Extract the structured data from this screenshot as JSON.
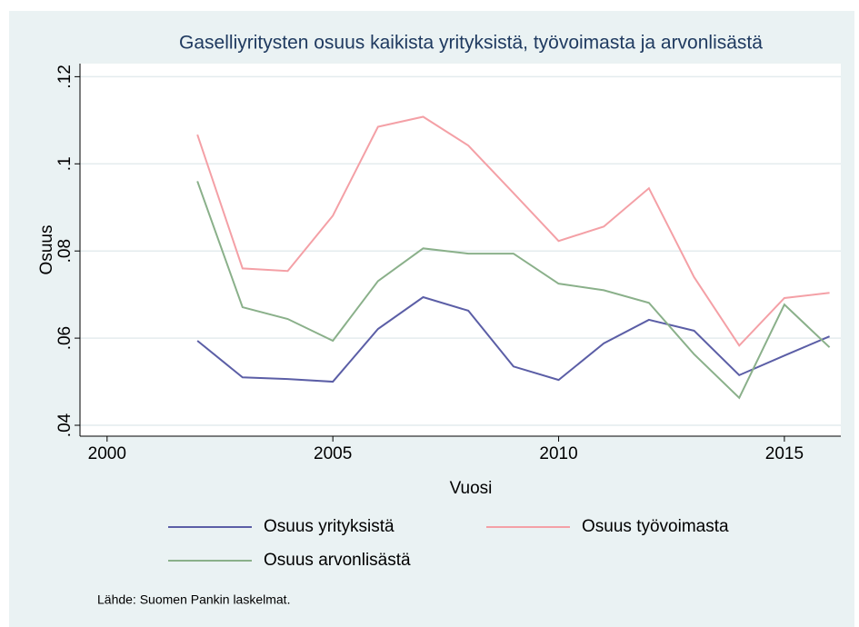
{
  "chart_data": {
    "type": "line",
    "title": "Gaselliyritysten osuus kaikista yrityksistä, työvoimasta ja arvonlisästä",
    "x_label": "Vuosi",
    "y_label": "Osuus",
    "note": "Lähde: Suomen Pankin laskelmat.",
    "x": [
      2002,
      2003,
      2004,
      2005,
      2006,
      2007,
      2008,
      2009,
      2010,
      2011,
      2012,
      2013,
      2014,
      2015,
      2016
    ],
    "series": [
      {
        "name": "Osuus yrityksistä",
        "color": "#5b5ea6",
        "values": [
          0.0594,
          0.051,
          0.0506,
          0.05,
          0.0621,
          0.0694,
          0.0663,
          0.0535,
          0.0504,
          0.0588,
          0.0642,
          0.0617,
          0.0515,
          0.056,
          0.0604
        ]
      },
      {
        "name": "Osuus työvoimasta",
        "color": "#f4a0a6",
        "values": [
          0.1067,
          0.076,
          0.0754,
          0.0881,
          0.1085,
          0.1108,
          0.1042,
          0.0933,
          0.0823,
          0.0856,
          0.0944,
          0.074,
          0.0583,
          0.0692,
          0.0704
        ]
      },
      {
        "name": "Osuus arvonlisästä",
        "color": "#8ab08a",
        "values": [
          0.096,
          0.0671,
          0.0644,
          0.0594,
          0.0731,
          0.0806,
          0.0794,
          0.0794,
          0.0725,
          0.071,
          0.0681,
          0.0563,
          0.0463,
          0.0677,
          0.0579
        ]
      }
    ],
    "xlim": [
      1999.4,
      2016.25
    ],
    "xticks": [
      2000,
      2005,
      2010,
      2015
    ],
    "ylim": [
      0.0375,
      0.123
    ],
    "yticks": [
      {
        "value": 0.04,
        "label": ".04"
      },
      {
        "value": 0.06,
        "label": ".06"
      },
      {
        "value": 0.08,
        "label": ".08"
      },
      {
        "value": 0.1,
        "label": ".1"
      },
      {
        "value": 0.12,
        "label": ".12"
      }
    ],
    "grid": true
  }
}
